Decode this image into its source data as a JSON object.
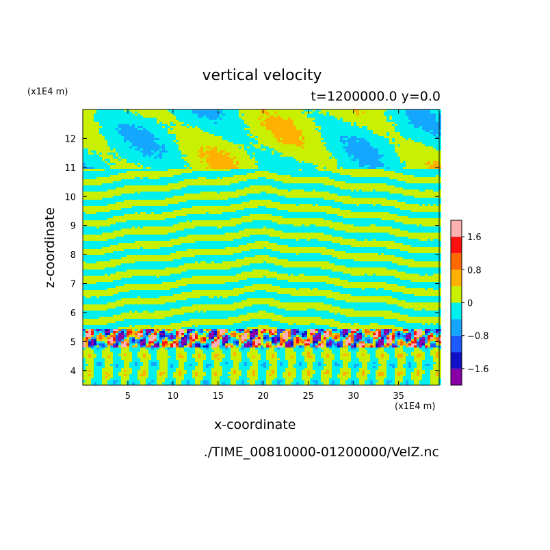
{
  "chart_data": {
    "type": "heatmap",
    "title": "vertical velocity",
    "subtitle": "t=1200000.0 y=0.0",
    "xlabel": "x-coordinate",
    "ylabel": "z-coordinate",
    "x_unit": "(x1E4 m)",
    "y_unit": "(x1E4 m)",
    "xlim": [
      0,
      39.5
    ],
    "ylim": [
      3.5,
      13
    ],
    "x_ticks": [
      5,
      10,
      15,
      20,
      25,
      30,
      35
    ],
    "y_ticks": [
      4,
      5,
      6,
      7,
      8,
      9,
      10,
      11,
      12
    ],
    "colorbar": {
      "levels": [
        -2.0,
        -1.6,
        -1.2,
        -0.8,
        -0.4,
        0,
        0.4,
        0.8,
        1.2,
        1.6,
        2.0
      ],
      "colors": [
        "#8a00a8",
        "#1010c8",
        "#1a5aff",
        "#15a6ff",
        "#00f0f0",
        "#c8f000",
        "#ffb000",
        "#ff6a00",
        "#ff1010",
        "#ffb0b0"
      ],
      "tick_labels": [
        "1.6",
        "0.8",
        "0",
        "−0.8",
        "−1.6"
      ],
      "tick_values": [
        1.6,
        0.8,
        0,
        -0.8,
        -1.6
      ]
    },
    "field_description": {
      "background_levels": [
        -0.4,
        0.4
      ],
      "active_layer_z": [
        4.8,
        5.5
      ]
    },
    "grid": false
  },
  "footer": {
    "filename": "./TIME_00810000-01200000/VelZ.nc"
  }
}
